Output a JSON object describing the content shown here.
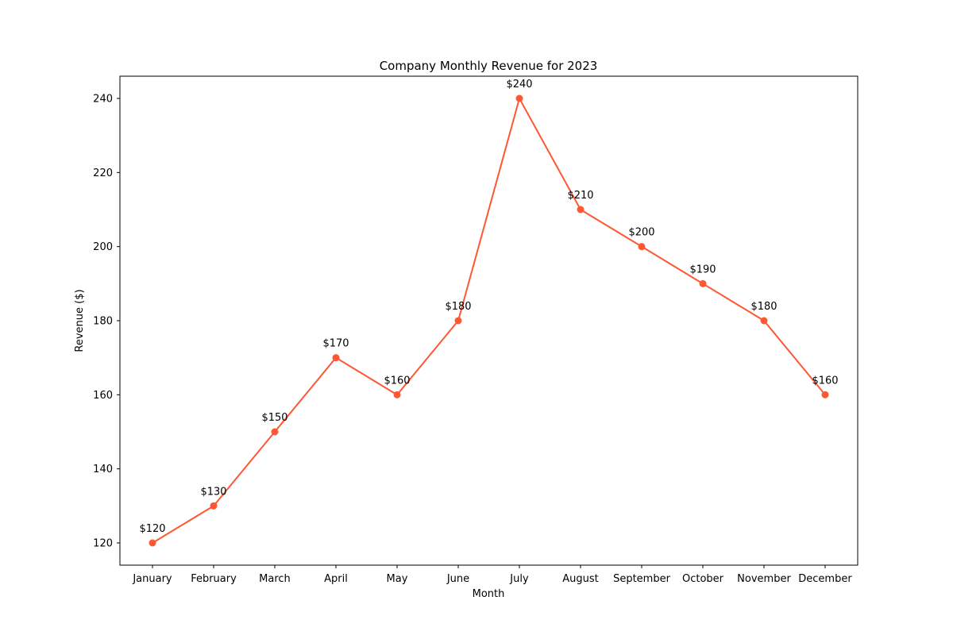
{
  "chart_data": {
    "type": "line",
    "title": "Company Monthly Revenue for 2023",
    "xlabel": "Month",
    "ylabel": "Revenue ($)",
    "categories": [
      "January",
      "February",
      "March",
      "April",
      "May",
      "June",
      "July",
      "August",
      "September",
      "October",
      "November",
      "December"
    ],
    "series": [
      {
        "values": [
          120,
          130,
          150,
          170,
          160,
          180,
          240,
          210,
          200,
          190,
          180,
          160
        ],
        "data_labels": [
          "$120",
          "$130",
          "$150",
          "$170",
          "$160",
          "$180",
          "$240",
          "$210",
          "$200",
          "$190",
          "$180",
          "$160"
        ],
        "color": "#FF5733",
        "marker": "circle"
      }
    ],
    "ylim": [
      114,
      246
    ],
    "yticks": [
      120,
      140,
      160,
      180,
      200,
      220,
      240
    ],
    "grid": false,
    "legend": "none"
  }
}
